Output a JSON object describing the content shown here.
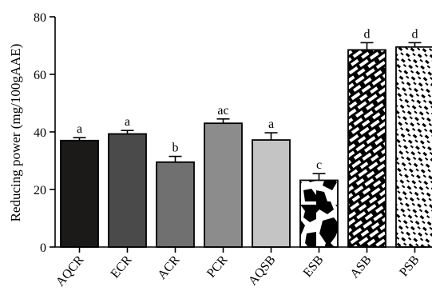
{
  "chart_data": {
    "type": "bar",
    "title": "",
    "xlabel": "",
    "ylabel": "Reducing power (mg/100gAAE)",
    "ylim": [
      0,
      80
    ],
    "yticks": [
      0,
      20,
      40,
      60,
      80
    ],
    "grid": false,
    "categories": [
      "AQCR",
      "ECR",
      "ACR",
      "PCR",
      "AQSB",
      "ESB",
      "ASB",
      "PSB"
    ],
    "values": [
      37,
      39.3,
      29.5,
      43,
      37.2,
      23.2,
      68.5,
      69.5
    ],
    "errors": [
      1,
      1.2,
      2,
      1.5,
      2.5,
      2.3,
      2.5,
      1.5
    ],
    "letters": [
      "a",
      "a",
      "b",
      "ac",
      "a",
      "c",
      "d",
      "d"
    ],
    "fills": [
      "#1c1a18",
      "#4a4a4a",
      "#707070",
      "#8c8c8c",
      "#c4c4c4",
      "pattern-blobs",
      "pattern-bricks",
      "pattern-dashes"
    ]
  }
}
